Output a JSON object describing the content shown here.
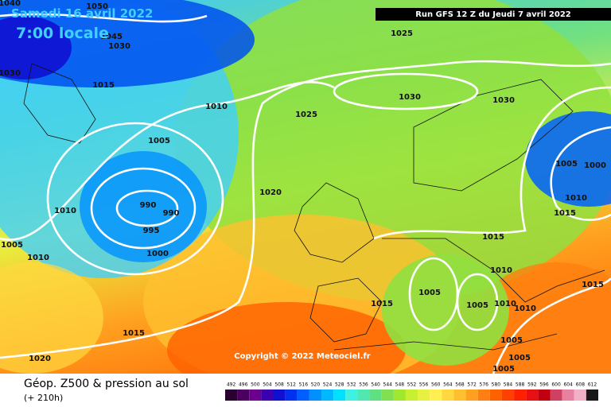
{
  "header": {
    "date": "Samedi 16 avril 2022",
    "time": "7:00 locale",
    "run": "Run GFS 12 Z du Jeudi 7 avril 2022"
  },
  "isobar_labels": [
    "1040",
    "1050",
    "1045",
    "1030",
    "1030",
    "1025",
    "1015",
    "1010",
    "1025",
    "1030",
    "1030",
    "1005",
    "1005",
    "1000",
    "990",
    "990",
    "995",
    "1010",
    "1020",
    "1010",
    "1015",
    "1015",
    "1005",
    "1010",
    "1000",
    "1010",
    "1015",
    "1005",
    "1005",
    "1015",
    "1010",
    "1010",
    "1015",
    "1005",
    "1005",
    "1005",
    "1020"
  ],
  "copyright": "Copyright © 2022 Meteociel.fr",
  "footer": {
    "title": "Géop. Z500 & pression au sol",
    "lead": "(+ 210h)"
  },
  "legend": {
    "labels": [
      "492",
      "496",
      "500",
      "504",
      "508",
      "512",
      "516",
      "520",
      "524",
      "528",
      "532",
      "536",
      "540",
      "544",
      "548",
      "552",
      "556",
      "560",
      "564",
      "568",
      "572",
      "576",
      "580",
      "584",
      "588",
      "592",
      "596",
      "600",
      "604",
      "608",
      "612"
    ],
    "colors": [
      "#2a0030",
      "#4b0060",
      "#6a008c",
      "#3b00b0",
      "#1010d0",
      "#0030f0",
      "#0060ff",
      "#0090ff",
      "#00b8ff",
      "#00e0ff",
      "#40f0e0",
      "#50e8b0",
      "#60e080",
      "#80e050",
      "#a0e830",
      "#c8f030",
      "#e8f040",
      "#ffef50",
      "#ffd840",
      "#ffc030",
      "#ffa020",
      "#ff8010",
      "#ff6000",
      "#ff4000",
      "#ff2000",
      "#e81010",
      "#c00010",
      "#d04060",
      "#e880a0",
      "#f0b0c8",
      "#181818"
    ]
  }
}
